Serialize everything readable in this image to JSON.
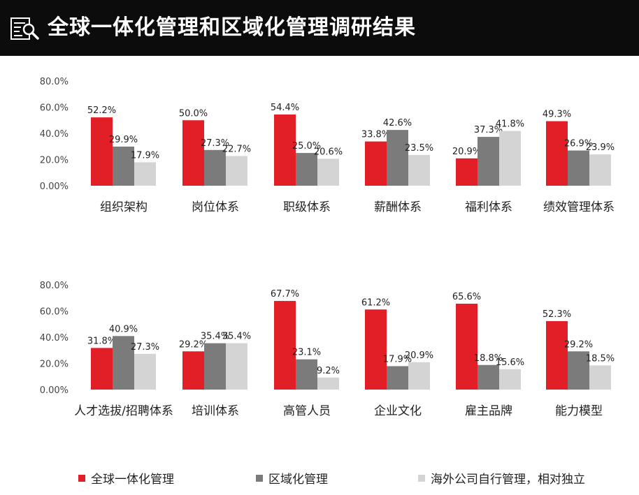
{
  "header": {
    "title": "全球一体化管理和区域化管理调研结果",
    "icon": "search-document-icon"
  },
  "colors": {
    "global": "#e21f26",
    "regional": "#7b7b7b",
    "local": "#d4d4d4",
    "header_bg": "#0c0c0c"
  },
  "chart_data": [
    {
      "type": "bar",
      "categories": [
        "组织架构",
        "岗位体系",
        "职级体系",
        "薪酬体系",
        "福利体系",
        "绩效管理体系"
      ],
      "series": [
        {
          "name": "全球一体化管理",
          "values": [
            52.2,
            50.0,
            54.4,
            33.8,
            20.9,
            49.3
          ]
        },
        {
          "name": "区域化管理",
          "values": [
            29.9,
            27.3,
            25.0,
            42.6,
            37.3,
            26.9
          ]
        },
        {
          "name": "海外公司自行管理，相对独立",
          "values": [
            17.9,
            22.7,
            20.6,
            23.5,
            41.8,
            23.9
          ]
        }
      ],
      "value_labels": [
        [
          "52.2%",
          "50.0%",
          "54.4%",
          "33.8%",
          "20.9%",
          "49.3%"
        ],
        [
          "29.9%",
          "27.3%",
          "25.0%",
          "42.6%",
          "37.3%",
          "26.9%"
        ],
        [
          "17.9%",
          "22.7%",
          "20.6%",
          "23.5%",
          "41.8%",
          "23.9%"
        ]
      ],
      "yticks": [
        "0.00%",
        "20.0%",
        "40.0%",
        "60.0%",
        "80.0%"
      ],
      "ylim": [
        0,
        80
      ],
      "grid": false
    },
    {
      "type": "bar",
      "categories": [
        "人才选拔/招聘体系",
        "培训体系",
        "高管人员",
        "企业文化",
        "雇主品牌",
        "能力模型"
      ],
      "series": [
        {
          "name": "全球一体化管理",
          "values": [
            31.8,
            29.2,
            67.7,
            61.2,
            65.6,
            52.3
          ]
        },
        {
          "name": "区域化管理",
          "values": [
            40.9,
            35.4,
            23.1,
            17.9,
            18.8,
            29.2
          ]
        },
        {
          "name": "海外公司自行管理，相对独立",
          "values": [
            27.3,
            35.4,
            9.2,
            20.9,
            15.6,
            18.5
          ]
        }
      ],
      "value_labels": [
        [
          "31.8%",
          "29.2%",
          "67.7%",
          "61.2%",
          "65.6%",
          "52.3%"
        ],
        [
          "40.9%",
          "35.4%",
          "23.1%",
          "17.9%",
          "18.8%",
          "29.2%"
        ],
        [
          "27.3%",
          "35.4%",
          "9.2%",
          "20.9%",
          "15.6%",
          "18.5%"
        ]
      ],
      "yticks": [
        "0.00%",
        "20.0%",
        "40.0%",
        "60.0%",
        "80.0%"
      ],
      "ylim": [
        0,
        80
      ],
      "grid": false
    }
  ],
  "legend": [
    {
      "label": "全球一体化管理",
      "color": "#e21f26"
    },
    {
      "label": "区域化管理",
      "color": "#7b7b7b"
    },
    {
      "label": "海外公司自行管理，相对独立",
      "color": "#d4d4d4"
    }
  ]
}
